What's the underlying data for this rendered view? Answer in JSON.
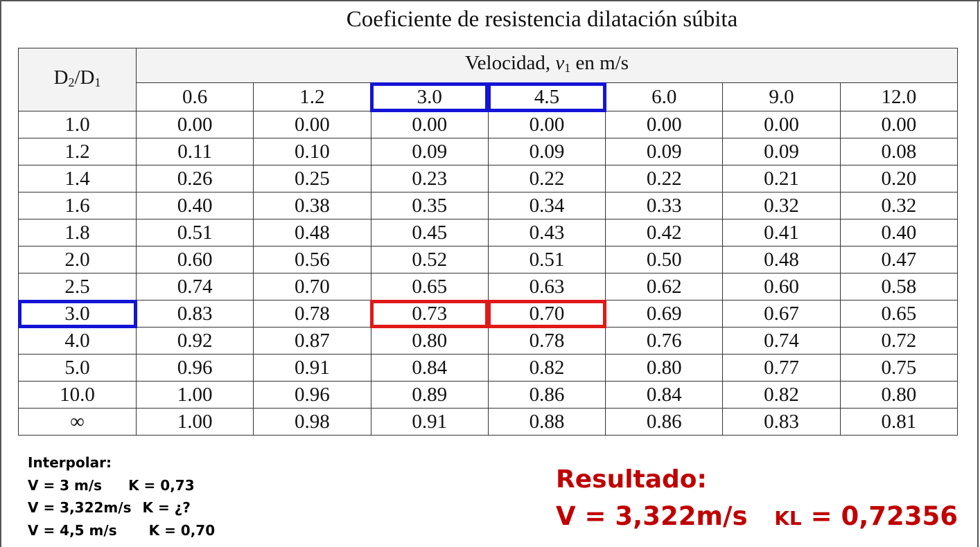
{
  "title": "Coeficiente de resistencia dilatación súbita",
  "table": {
    "corner_label": {
      "main": "D",
      "sub1": "2",
      "slash": "/D",
      "sub2": "1"
    },
    "group_header": {
      "prefix": "Velocidad, ",
      "var": "v",
      "var_sub": "1",
      "suffix": " en m/s"
    },
    "velocities": [
      "0.6",
      "1.2",
      "3.0",
      "4.5",
      "6.0",
      "9.0",
      "12.0"
    ],
    "rows": [
      {
        "ratio": "1.0",
        "values": [
          "0.00",
          "0.00",
          "0.00",
          "0.00",
          "0.00",
          "0.00",
          "0.00"
        ]
      },
      {
        "ratio": "1.2",
        "values": [
          "0.11",
          "0.10",
          "0.09",
          "0.09",
          "0.09",
          "0.09",
          "0.08"
        ]
      },
      {
        "ratio": "1.4",
        "values": [
          "0.26",
          "0.25",
          "0.23",
          "0.22",
          "0.22",
          "0.21",
          "0.20"
        ]
      },
      {
        "ratio": "1.6",
        "values": [
          "0.40",
          "0.38",
          "0.35",
          "0.34",
          "0.33",
          "0.32",
          "0.32"
        ]
      },
      {
        "ratio": "1.8",
        "values": [
          "0.51",
          "0.48",
          "0.45",
          "0.43",
          "0.42",
          "0.41",
          "0.40"
        ]
      },
      {
        "ratio": "2.0",
        "values": [
          "0.60",
          "0.56",
          "0.52",
          "0.51",
          "0.50",
          "0.48",
          "0.47"
        ]
      },
      {
        "ratio": "2.5",
        "values": [
          "0.74",
          "0.70",
          "0.65",
          "0.63",
          "0.62",
          "0.60",
          "0.58"
        ]
      },
      {
        "ratio": "3.0",
        "values": [
          "0.83",
          "0.78",
          "0.73",
          "0.70",
          "0.69",
          "0.67",
          "0.65"
        ]
      },
      {
        "ratio": "4.0",
        "values": [
          "0.92",
          "0.87",
          "0.80",
          "0.78",
          "0.76",
          "0.74",
          "0.72"
        ]
      },
      {
        "ratio": "5.0",
        "values": [
          "0.96",
          "0.91",
          "0.84",
          "0.82",
          "0.80",
          "0.77",
          "0.75"
        ]
      },
      {
        "ratio": "10.0",
        "values": [
          "1.00",
          "0.96",
          "0.89",
          "0.86",
          "0.84",
          "0.82",
          "0.80"
        ]
      },
      {
        "ratio": "∞",
        "values": [
          "1.00",
          "0.98",
          "0.91",
          "0.88",
          "0.86",
          "0.83",
          "0.81"
        ]
      }
    ]
  },
  "notes": {
    "heading": "Interpolar:",
    "line1": {
      "v": "V = 3 m/s",
      "k": "K = 0,73"
    },
    "line2": {
      "v": "V = 3,322m/s",
      "k": "K  = ¿?"
    },
    "line3": {
      "v": "V = 4,5 m/s",
      "k": "K = 0,70"
    }
  },
  "result": {
    "title": "Resultado:",
    "v": "V = 3,322m/s",
    "k_label": "KL",
    "k_value": " = 0,72356"
  },
  "colors": {
    "blue_highlight": "#1414d6",
    "red_highlight": "#e01919",
    "result_text": "#c00000"
  }
}
